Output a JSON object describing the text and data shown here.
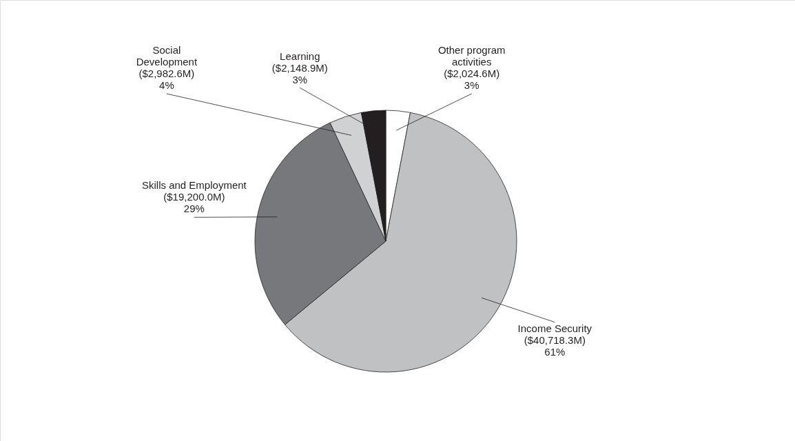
{
  "chart_data": {
    "type": "pie",
    "categories": [
      "Other program activities ($2,024.6M)",
      "Income Security ($40,718.3M)",
      "Skills and Employment ($19,200.0M)",
      "Social Development ($2,982.6M)",
      "Learning ($2,148.9M)"
    ],
    "values": [
      3,
      61,
      29,
      4,
      3
    ],
    "value_labels": [
      "3%",
      "61%",
      "29%",
      "4%",
      "3%"
    ],
    "colors": [
      "#ffffff",
      "#c0c1c3",
      "#77787b",
      "#d0d1d3",
      "#231f20"
    ]
  }
}
